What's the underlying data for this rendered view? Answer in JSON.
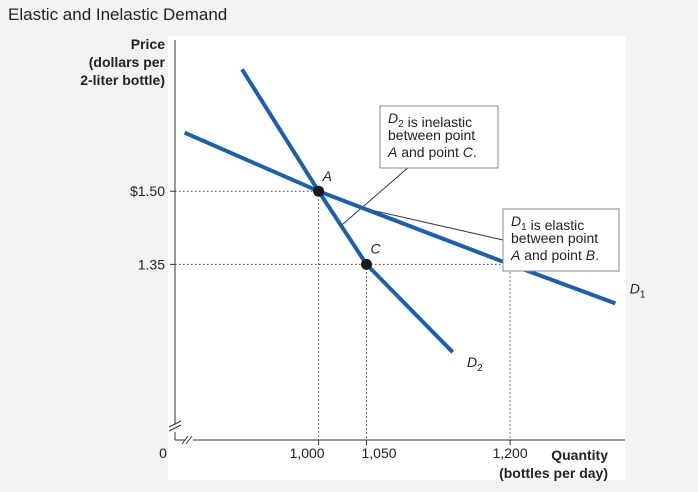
{
  "title": "Elastic and Inelastic Demand",
  "colors": {
    "curve": "#1b5fad",
    "point": "#1a1a1a",
    "background": "#f3f3f3",
    "plot": "#ffffff",
    "callout_border": "#888888"
  },
  "chart_data": {
    "type": "line",
    "title": "Elastic and Inelastic Demand",
    "ylabel_lines": [
      "Price",
      "(dollars per",
      "2-liter bottle)"
    ],
    "xlabel_lines": [
      "Quantity",
      "(bottles per day)"
    ],
    "origin_label": "0",
    "axis_break": true,
    "grid": false,
    "xlim": [
      850,
      1320
    ],
    "ylim": [
      0.99,
      1.81
    ],
    "x_ticks": [
      {
        "value": 1000,
        "label": "1,000"
      },
      {
        "value": 1050,
        "label": "1,050"
      },
      {
        "value": 1200,
        "label": "1,200"
      }
    ],
    "y_ticks": [
      {
        "value": 1.5,
        "label": "$1.50"
      },
      {
        "value": 1.35,
        "label": "1.35"
      }
    ],
    "series": [
      {
        "name": "D",
        "subscript": "1",
        "label_at": [
          1325,
          1.29
        ],
        "points": [
          [
            860,
            1.62
          ],
          [
            1000,
            1.5
          ],
          [
            1200,
            1.35
          ],
          [
            1310,
            1.27
          ]
        ]
      },
      {
        "name": "D",
        "subscript": "2",
        "label_at": [
          1155,
          1.14
        ],
        "points": [
          [
            920,
            1.75
          ],
          [
            1000,
            1.5
          ],
          [
            1050,
            1.35
          ],
          [
            1140,
            1.17
          ]
        ]
      }
    ],
    "points": [
      {
        "label": "A",
        "x": 1000,
        "y": 1.5
      },
      {
        "label": "B",
        "x": 1200,
        "y": 1.35
      },
      {
        "label": "C",
        "x": 1050,
        "y": 1.35
      }
    ],
    "annotations": [
      {
        "id": "d2",
        "lines": [
          [
            [
              "D",
              "i"
            ],
            [
              "2",
              "sub"
            ],
            [
              " is inelastic",
              "n"
            ]
          ],
          [
            [
              "between point",
              "n"
            ]
          ],
          [
            [
              "A",
              "i"
            ],
            [
              " and point ",
              "n"
            ],
            [
              "C",
              "i"
            ],
            [
              ".",
              "n"
            ]
          ]
        ]
      },
      {
        "id": "d1",
        "lines": [
          [
            [
              "D",
              "i"
            ],
            [
              "1",
              "sub"
            ],
            [
              " is elastic",
              "n"
            ]
          ],
          [
            [
              "between point",
              "n"
            ]
          ],
          [
            [
              "A",
              "i"
            ],
            [
              " and point ",
              "n"
            ],
            [
              "B",
              "i"
            ],
            [
              ".",
              "n"
            ]
          ]
        ]
      }
    ]
  }
}
